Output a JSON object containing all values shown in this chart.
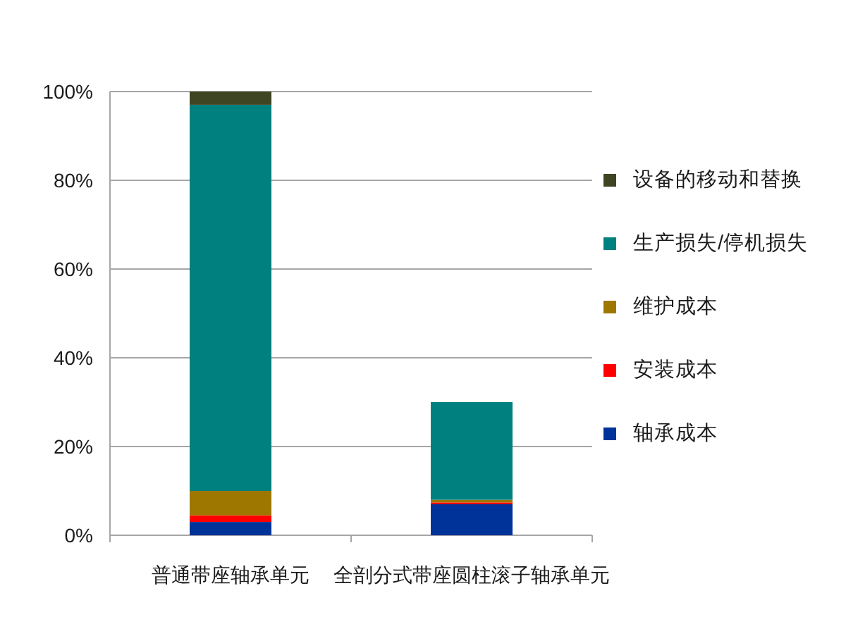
{
  "chart_data": {
    "type": "bar",
    "categories": [
      "普通带座轴承单元",
      "全剖分式带座圆柱滚子轴承单元"
    ],
    "stacked": true,
    "series": [
      {
        "name": "轴承成本",
        "color": "#003399",
        "values": [
          3,
          7
        ]
      },
      {
        "name": "安装成本",
        "color": "#ff0000",
        "values": [
          1.5,
          0.4
        ]
      },
      {
        "name": "维护成本",
        "color": "#9e7700",
        "values": [
          5.5,
          0.6
        ]
      },
      {
        "name": "生产损失/停机损失",
        "color": "#00807f",
        "values": [
          87,
          22
        ]
      },
      {
        "name": "设备的移动和替换",
        "color": "#3f4422",
        "values": [
          3,
          0
        ]
      }
    ],
    "ylim": [
      0,
      100
    ],
    "yticks": [
      {
        "value": 0,
        "label": "0%"
      },
      {
        "value": 20,
        "label": "20%"
      },
      {
        "value": 40,
        "label": "40%"
      },
      {
        "value": 60,
        "label": "60%"
      },
      {
        "value": 80,
        "label": "80%"
      },
      {
        "value": 100,
        "label": "100%"
      }
    ],
    "grid": "y",
    "legend": "right"
  }
}
